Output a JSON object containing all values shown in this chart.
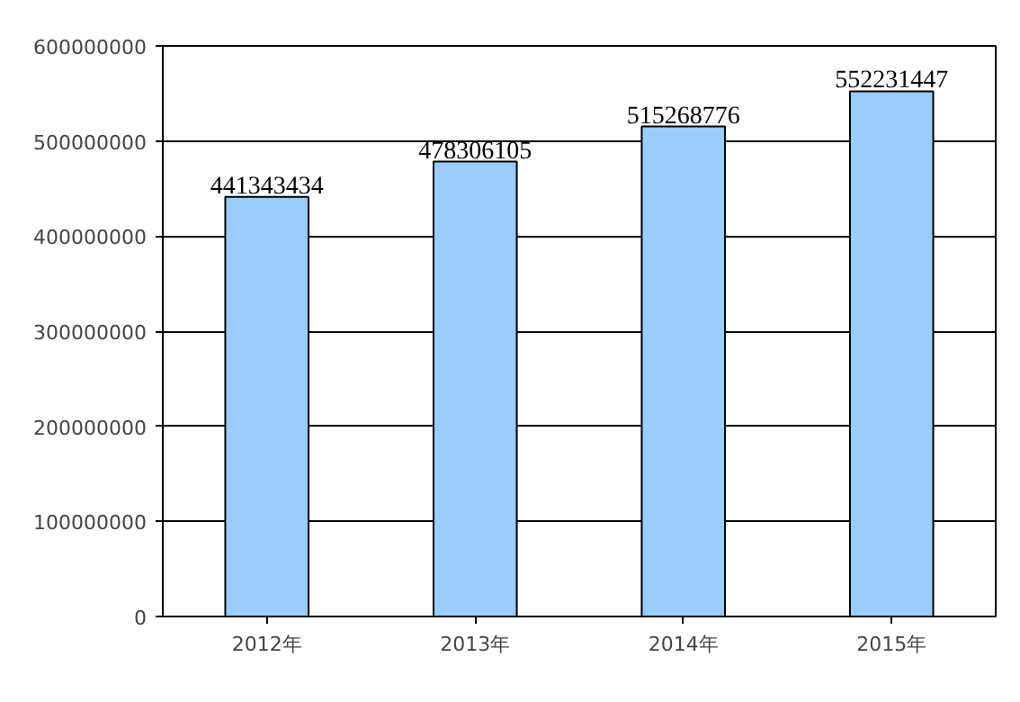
{
  "chart_data": {
    "type": "bar",
    "categories": [
      "2012年",
      "2013年",
      "2014年",
      "2015年"
    ],
    "values": [
      441343434,
      478306105,
      515268776,
      552231447
    ],
    "color": "#99ccff",
    "ylim": [
      0,
      600000000
    ],
    "yticks": [
      0,
      100000000,
      200000000,
      300000000,
      400000000,
      500000000,
      600000000
    ],
    "grid": "y",
    "data_labels": true
  }
}
